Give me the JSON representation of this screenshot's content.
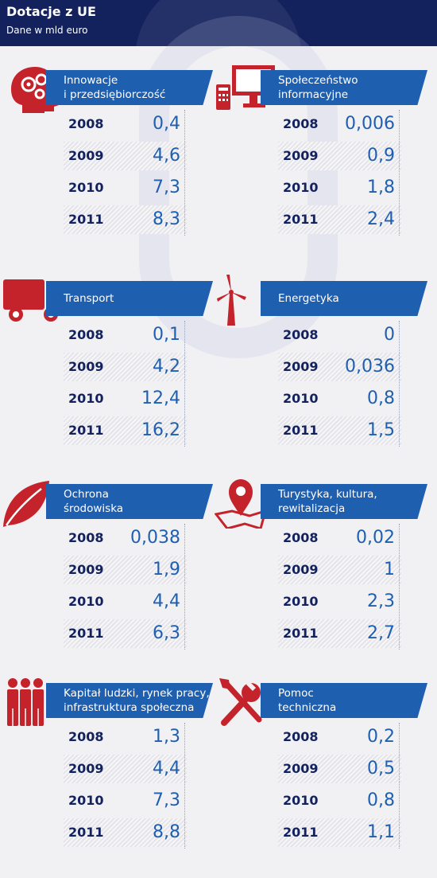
{
  "header": {
    "title": "Dotacje z UE",
    "subtitle": "Dane w mld euro"
  },
  "chart_data": {
    "type": "table",
    "title": "Dotacje z UE",
    "subtitle": "Dane w mld euro",
    "years": [
      "2008",
      "2009",
      "2010",
      "2011"
    ],
    "categories": [
      {
        "name": "Innowacje\ni przedsiębiorczość",
        "icon": "gears-head-icon",
        "values": [
          "0,4",
          "4,6",
          "7,3",
          "8,3"
        ]
      },
      {
        "name": "Społeczeństwo\ninformacyjne",
        "icon": "computer-icon",
        "values": [
          "0,006",
          "0,9",
          "1,8",
          "2,4"
        ]
      },
      {
        "name": "Transport",
        "icon": "truck-icon",
        "values": [
          "0,1",
          "4,2",
          "12,4",
          "16,2"
        ]
      },
      {
        "name": "Energetyka",
        "icon": "wind-turbine-icon",
        "values": [
          "0",
          "0,036",
          "0,8",
          "1,5"
        ]
      },
      {
        "name": "Ochrona\nśrodowiska",
        "icon": "leaf-icon",
        "values": [
          "0,038",
          "1,9",
          "4,4",
          "6,3"
        ]
      },
      {
        "name": "Turystyka, kultura,\nrewitalizacja",
        "icon": "map-pin-icon",
        "values": [
          "0,02",
          "1",
          "2,3",
          "2,7"
        ]
      },
      {
        "name": "Kapitał ludzki, rynek pracy,\ninfrastruktura społeczna",
        "icon": "people-icon",
        "values": [
          "1,3",
          "4,4",
          "7,3",
          "8,8"
        ]
      },
      {
        "name": "Pomoc\ntechniczna",
        "icon": "tools-icon",
        "values": [
          "0,2",
          "0,5",
          "0,8",
          "1,1"
        ]
      }
    ]
  },
  "colors": {
    "navy": "#13225d",
    "blue": "#1f5fb0",
    "red": "#c4232b"
  }
}
